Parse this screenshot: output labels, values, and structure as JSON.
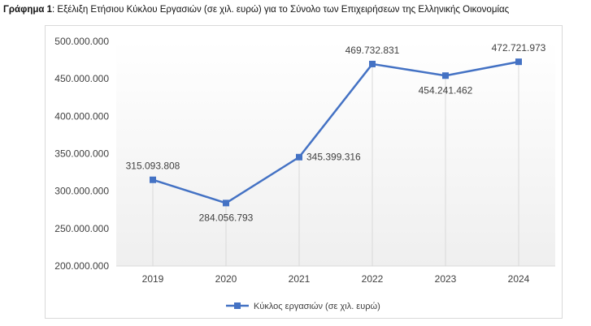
{
  "caption": {
    "prefix": "Γράφημα 1",
    "text": ": Εξέλιξη Ετήσιου Κύκλου Εργασιών (σε χιλ. ευρώ) για το Σύνολο των Επιχειρήσεων της Ελληνικής Οικονομίας"
  },
  "chart_data": {
    "type": "line",
    "title": "",
    "xlabel": "",
    "ylabel": "",
    "categories": [
      "2019",
      "2020",
      "2021",
      "2022",
      "2023",
      "2024"
    ],
    "series": [
      {
        "name": "Κύκλος εργασιών (σε χιλ. ευρώ)",
        "values": [
          315093808,
          284056793,
          345399316,
          469732831,
          454241462,
          472721973
        ],
        "labels": [
          "315.093.808",
          "284.056.793",
          "345.399.316",
          "469.732.831",
          "454.241.462",
          "472.721.973"
        ]
      }
    ],
    "ylim": [
      200000000,
      500000000
    ],
    "yticks": [
      200000000,
      250000000,
      300000000,
      350000000,
      400000000,
      450000000,
      500000000
    ],
    "ytick_labels": [
      "200.000.000",
      "250.000.000",
      "300.000.000",
      "350.000.000",
      "400.000.000",
      "450.000.000",
      "500.000.000"
    ],
    "grid": false,
    "legend_position": "bottom",
    "colors": {
      "series": "#4472c4",
      "axis": "#d9d9d9",
      "drop_lines": "#d9d9d9",
      "text": "#404040"
    }
  }
}
